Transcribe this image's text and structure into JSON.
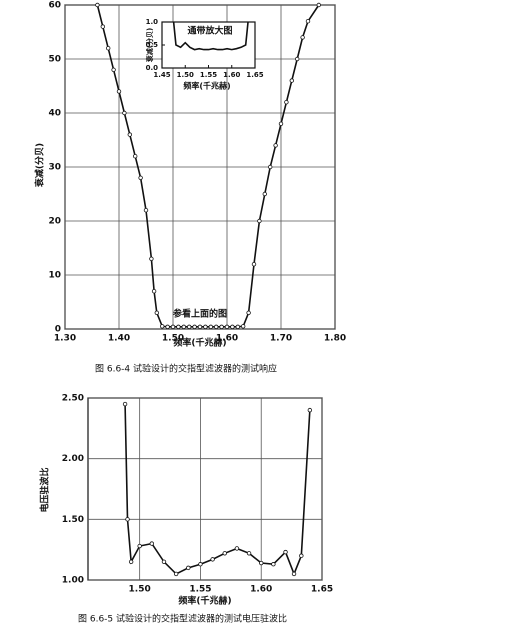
{
  "chart_data": [
    {
      "type": "line",
      "x_label": "频率(千兆赫)",
      "y_label": "衰减(分贝)",
      "annotation": "参看上面的图",
      "caption": "图 6.6-4  试验设计的交指型滤波器的测试响应",
      "color": "#111",
      "markers": true,
      "grid": true,
      "x": [
        1.36,
        1.37,
        1.38,
        1.39,
        1.4,
        1.41,
        1.42,
        1.43,
        1.44,
        1.45,
        1.46,
        1.465,
        1.47,
        1.48,
        1.49,
        1.5,
        1.51,
        1.52,
        1.53,
        1.54,
        1.55,
        1.56,
        1.57,
        1.58,
        1.59,
        1.6,
        1.61,
        1.62,
        1.63,
        1.64,
        1.65,
        1.66,
        1.67,
        1.68,
        1.69,
        1.7,
        1.71,
        1.72,
        1.73,
        1.74,
        1.75,
        1.77
      ],
      "values": [
        60,
        56,
        52,
        48,
        44,
        40,
        36,
        32,
        28,
        22,
        13,
        7,
        3,
        0.5,
        0.4,
        0.4,
        0.4,
        0.4,
        0.4,
        0.4,
        0.4,
        0.4,
        0.4,
        0.4,
        0.4,
        0.4,
        0.4,
        0.4,
        0.5,
        3,
        12,
        20,
        25,
        30,
        34,
        38,
        42,
        46,
        50,
        54,
        57,
        60
      ],
      "xlim": [
        1.3,
        1.8
      ],
      "xticks": [
        {
          "value": 1.3,
          "label": "1.30"
        },
        {
          "value": 1.4,
          "label": "1.40"
        },
        {
          "value": 1.5,
          "label": "1.50"
        },
        {
          "value": 1.6,
          "label": "1.60"
        },
        {
          "value": 1.7,
          "label": "1.70"
        },
        {
          "value": 1.8,
          "label": "1.80"
        }
      ],
      "ylim": [
        0,
        60
      ],
      "yticks": [
        0,
        10,
        20,
        30,
        40,
        50,
        60
      ]
    },
    {
      "type": "line",
      "title": "通带放大图",
      "x_label": "频率(千兆赫)",
      "y_label": "衰减(分贝)",
      "color": "#111",
      "markers": false,
      "grid": false,
      "x": [
        1.475,
        1.48,
        1.49,
        1.5,
        1.51,
        1.52,
        1.53,
        1.54,
        1.55,
        1.56,
        1.57,
        1.58,
        1.59,
        1.6,
        1.61,
        1.62,
        1.63,
        1.635
      ],
      "values": [
        1.0,
        0.5,
        0.45,
        0.55,
        0.45,
        0.4,
        0.42,
        0.4,
        0.4,
        0.42,
        0.4,
        0.4,
        0.42,
        0.4,
        0.42,
        0.45,
        0.5,
        1.0
      ],
      "xlim": [
        1.45,
        1.65
      ],
      "xticks": [
        1.45,
        {
          "value": 1.5,
          "label": "1.50"
        },
        1.55,
        {
          "value": 1.6,
          "label": "1.60"
        },
        1.65
      ],
      "ylim": [
        0,
        1.0
      ],
      "yticks": [
        {
          "value": 0,
          "label": "0.0"
        },
        0.5,
        {
          "value": 1,
          "label": "1.0"
        }
      ]
    },
    {
      "type": "line",
      "x_label": "频率(千兆赫)",
      "y_label": "电压驻波比",
      "caption": "图 6.6-5  试验设计的交指型滤波器的测试电压驻波比",
      "color": "#111",
      "markers": true,
      "grid": true,
      "x": [
        1.488,
        1.49,
        1.493,
        1.5,
        1.51,
        1.52,
        1.53,
        1.54,
        1.55,
        1.56,
        1.57,
        1.58,
        1.59,
        1.6,
        1.61,
        1.62,
        1.627,
        1.633,
        1.64
      ],
      "values": [
        2.45,
        1.5,
        1.15,
        1.28,
        1.3,
        1.15,
        1.05,
        1.1,
        1.13,
        1.17,
        1.22,
        1.26,
        1.22,
        1.14,
        1.13,
        1.23,
        1.05,
        1.2,
        2.4
      ],
      "xlim": [
        1.4575,
        1.65
      ],
      "xticks": [
        {
          "value": 1.5,
          "label": "1.50"
        },
        1.55,
        {
          "value": 1.6,
          "label": "1.60"
        },
        1.65
      ],
      "ylim": [
        1.0,
        2.5
      ],
      "yticks": [
        {
          "value": 1,
          "label": "1.00"
        },
        {
          "value": 1.5,
          "label": "1.50"
        },
        {
          "value": 2,
          "label": "2.00"
        },
        {
          "value": 2.5,
          "label": "2.50"
        }
      ]
    }
  ]
}
